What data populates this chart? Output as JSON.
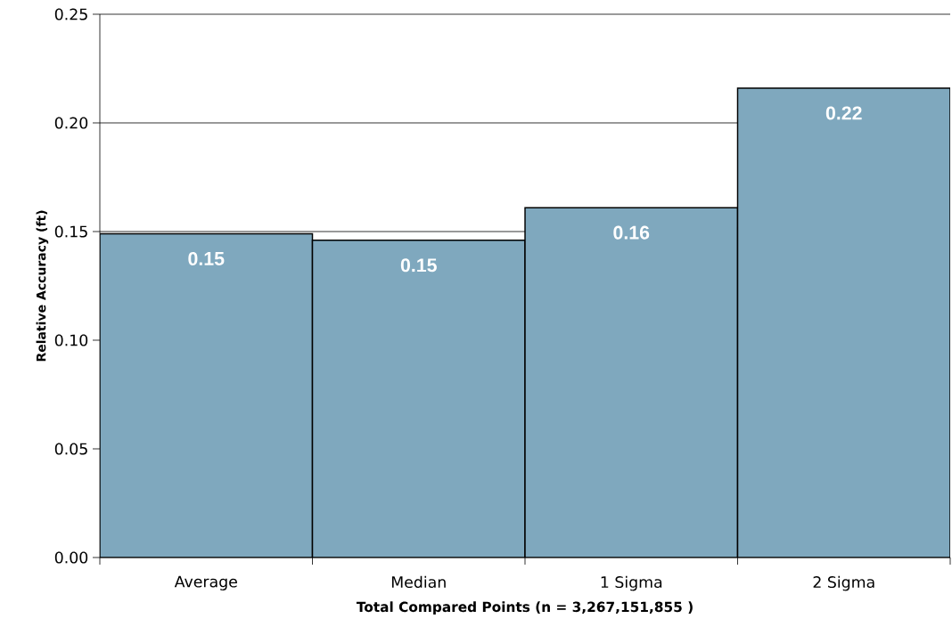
{
  "chart_data": {
    "type": "bar",
    "xlabel": "Total Compared Points (n = 3,267,151,855 )",
    "ylabel": "Relative Accuracy (ft)",
    "categories": [
      "Average",
      "Median",
      "1 Sigma",
      "2 Sigma"
    ],
    "values": [
      0.149,
      0.146,
      0.161,
      0.216
    ],
    "value_labels": [
      "0.15",
      "0.15",
      "0.16",
      "0.22"
    ],
    "color": "#7fa8be",
    "ylim": [
      0,
      0.25
    ],
    "yticks": [
      {
        "value": 0,
        "label": "0.00"
      },
      {
        "value": 0.05,
        "label": "0.05"
      },
      {
        "value": 0.1,
        "label": "0.10"
      },
      {
        "value": 0.15,
        "label": "0.15"
      },
      {
        "value": 0.2,
        "label": "0.20"
      },
      {
        "value": 0.25,
        "label": "0.25"
      }
    ],
    "grid": "y"
  }
}
